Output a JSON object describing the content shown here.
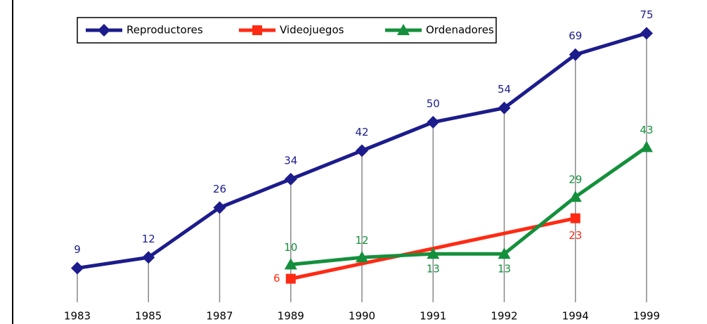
{
  "chart_data": {
    "type": "line",
    "categories": [
      "1983",
      "1985",
      "1987",
      "1989",
      "1990",
      "1991",
      "1992",
      "1994",
      "1999"
    ],
    "series": [
      {
        "name": "Reproductores",
        "color": "#1c1c8c",
        "marker": "diamond",
        "values": [
          9,
          12,
          26,
          34,
          42,
          50,
          54,
          69,
          75
        ]
      },
      {
        "name": "Videojuegos",
        "color": "#ff2a14",
        "marker": "square",
        "values": [
          null,
          null,
          null,
          6,
          null,
          null,
          null,
          23,
          null
        ]
      },
      {
        "name": "Ordenadores",
        "color": "#14903c",
        "marker": "triangle",
        "values": [
          null,
          null,
          null,
          10,
          12,
          13,
          13,
          29,
          43
        ]
      }
    ],
    "ylim": [
      0,
      80
    ],
    "connect_gaps": true,
    "drop_lines": true,
    "legend": "top"
  }
}
